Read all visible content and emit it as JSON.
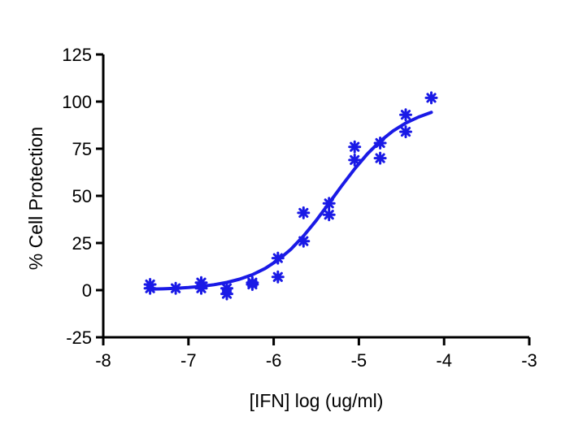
{
  "chart_data": {
    "type": "scatter",
    "title": "",
    "xlabel": "[IFN] log (ug/ml)",
    "ylabel": "% Cell Protection",
    "xlim": [
      -8,
      -3
    ],
    "ylim": [
      -25,
      125
    ],
    "xticks": [
      -8,
      -7,
      -6,
      -5,
      -4,
      -3
    ],
    "yticks": [
      -25,
      0,
      25,
      50,
      75,
      100,
      125
    ],
    "grid": false,
    "colors": {
      "series": "#1a1ae6",
      "axis": "#000000"
    },
    "series": [
      {
        "type": "scatter",
        "marker": "asterisk",
        "points": [
          [
            -7.45,
            3
          ],
          [
            -7.45,
            1
          ],
          [
            -7.15,
            1
          ],
          [
            -6.85,
            4
          ],
          [
            -6.85,
            1
          ],
          [
            -6.55,
            1
          ],
          [
            -6.55,
            -2
          ],
          [
            -6.25,
            4
          ],
          [
            -6.25,
            3
          ],
          [
            -5.95,
            17
          ],
          [
            -5.95,
            7
          ],
          [
            -5.65,
            41
          ],
          [
            -5.65,
            26
          ],
          [
            -5.35,
            46
          ],
          [
            -5.35,
            40
          ],
          [
            -5.05,
            76
          ],
          [
            -5.05,
            69
          ],
          [
            -4.75,
            78
          ],
          [
            -4.75,
            70
          ],
          [
            -4.45,
            93
          ],
          [
            -4.45,
            84
          ],
          [
            -4.15,
            102
          ]
        ]
      },
      {
        "type": "line",
        "curve": "sigmoidal-fit",
        "x": [
          -7.45,
          -7.3,
          -7.15,
          -7.0,
          -6.85,
          -6.7,
          -6.55,
          -6.4,
          -6.25,
          -6.1,
          -5.95,
          -5.8,
          -5.65,
          -5.5,
          -5.35,
          -5.2,
          -5.05,
          -4.9,
          -4.75,
          -4.6,
          -4.45,
          -4.3,
          -4.15
        ],
        "y": [
          0.5,
          0.7,
          1.0,
          1.4,
          2.0,
          2.9,
          4.1,
          5.8,
          8.2,
          11.5,
          15.9,
          21.6,
          28.7,
          37.0,
          46.1,
          55.4,
          64.3,
          72.3,
          79.0,
          84.4,
          88.6,
          91.8,
          94.3
        ]
      }
    ]
  }
}
